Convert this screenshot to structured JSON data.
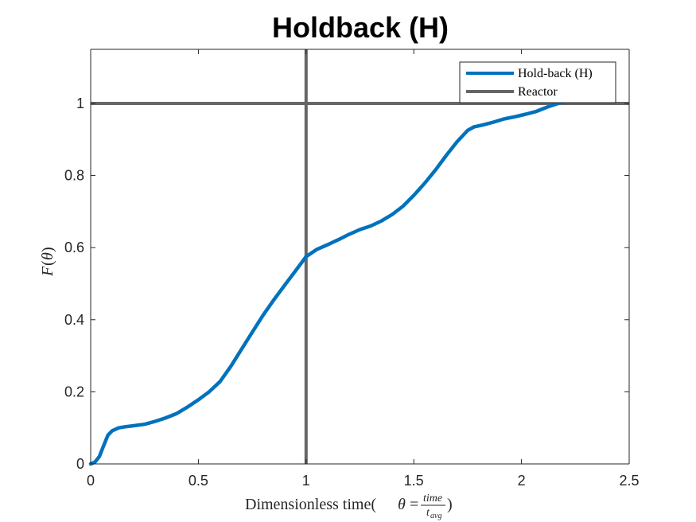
{
  "chart_data": {
    "type": "line",
    "title": "Holdback (H)",
    "xlabel_prefix": "Dimensionless time(",
    "xlabel_theta": "θ",
    "xlabel_eq": " = ",
    "xlabel_num": "time",
    "xlabel_den": "t",
    "xlabel_den_sub": "avg",
    "xlabel_suffix": ")",
    "ylabel_func": "F",
    "ylabel_open": "(",
    "ylabel_theta": "θ",
    "ylabel_close": ")",
    "xlim": [
      0,
      2.5
    ],
    "ylim": [
      0,
      1.15
    ],
    "xticks": [
      0,
      0.5,
      1,
      1.5,
      2,
      2.5
    ],
    "xtick_labels": [
      "0",
      "0.5",
      "1",
      "1.5",
      "2",
      "2.5"
    ],
    "yticks": [
      0,
      0.2,
      0.4,
      0.6,
      0.8,
      1
    ],
    "ytick_labels": [
      "0",
      "0.2",
      "0.4",
      "0.6",
      "0.8",
      "1"
    ],
    "grid": false,
    "legend_position": "top-right",
    "series": [
      {
        "name": "Hold-back (H)",
        "color": "#0072BD",
        "x": [
          0,
          0.02,
          0.04,
          0.06,
          0.08,
          0.1,
          0.13,
          0.16,
          0.2,
          0.25,
          0.3,
          0.35,
          0.4,
          0.45,
          0.5,
          0.55,
          0.6,
          0.65,
          0.7,
          0.75,
          0.8,
          0.85,
          0.9,
          0.95,
          1.0,
          1.05,
          1.1,
          1.15,
          1.2,
          1.25,
          1.3,
          1.35,
          1.4,
          1.45,
          1.5,
          1.55,
          1.6,
          1.65,
          1.7,
          1.75,
          1.78,
          1.82,
          1.87,
          1.92,
          1.97,
          2.02,
          2.07,
          2.12,
          2.17,
          2.2
        ],
        "y": [
          0,
          0.005,
          0.02,
          0.05,
          0.08,
          0.092,
          0.1,
          0.103,
          0.106,
          0.11,
          0.118,
          0.128,
          0.14,
          0.158,
          0.178,
          0.2,
          0.228,
          0.27,
          0.318,
          0.365,
          0.412,
          0.455,
          0.495,
          0.535,
          0.575,
          0.595,
          0.608,
          0.622,
          0.637,
          0.65,
          0.66,
          0.674,
          0.692,
          0.715,
          0.745,
          0.778,
          0.815,
          0.855,
          0.893,
          0.925,
          0.935,
          0.94,
          0.948,
          0.957,
          0.963,
          0.97,
          0.978,
          0.99,
          1.0,
          1.005
        ]
      },
      {
        "name": "Reactor",
        "color": "#666666",
        "vline_x": 1,
        "hline_y": 1
      }
    ]
  }
}
